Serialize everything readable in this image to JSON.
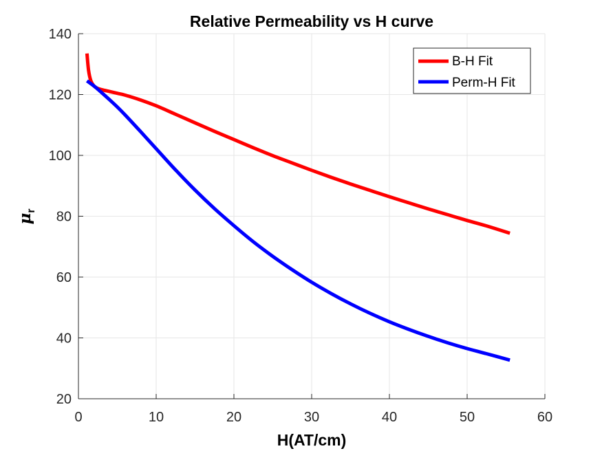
{
  "chart_data": {
    "type": "line",
    "title": "Relative Permeability vs H curve",
    "xlabel": "H(AT/cm)",
    "ylabel": {
      "symbol": "μ",
      "subscript": "r"
    },
    "xlim": [
      0,
      60
    ],
    "ylim": [
      20,
      140
    ],
    "xticks": [
      "0",
      "10",
      "20",
      "30",
      "40",
      "50",
      "60"
    ],
    "yticks": [
      "20",
      "40",
      "60",
      "80",
      "100",
      "120",
      "140"
    ],
    "grid": true,
    "legend_position": "top-right",
    "series": [
      {
        "name": "B-H Fit",
        "color": "#ff0000",
        "x": [
          1.1,
          1.3,
          1.6,
          2.0,
          2.5,
          3.0,
          4.0,
          5.0,
          6.0,
          8.0,
          10.0,
          12.5,
          15.0,
          17.5,
          20.0,
          22.5,
          25.0,
          27.5,
          30.0,
          32.5,
          35.0,
          37.5,
          40.0,
          42.5,
          45.0,
          47.5,
          50.0,
          52.5,
          55.5
        ],
        "y": [
          133.5,
          128.0,
          124.5,
          122.8,
          122.0,
          121.6,
          121.0,
          120.4,
          119.8,
          118.2,
          116.3,
          113.5,
          110.7,
          107.9,
          105.2,
          102.5,
          99.9,
          97.5,
          95.1,
          92.8,
          90.6,
          88.5,
          86.4,
          84.4,
          82.4,
          80.5,
          78.6,
          76.8,
          74.4
        ]
      },
      {
        "name": "Perm-H Fit",
        "color": "#0000ff",
        "x": [
          1.1,
          2.0,
          3.0,
          4.0,
          5.0,
          6.0,
          8.0,
          10.0,
          12.5,
          15.0,
          17.5,
          20.0,
          22.5,
          25.0,
          27.5,
          30.0,
          32.5,
          35.0,
          37.5,
          40.0,
          42.5,
          45.0,
          47.5,
          50.0,
          52.5,
          55.5
        ],
        "y": [
          124.5,
          122.8,
          120.6,
          118.3,
          115.9,
          113.3,
          107.8,
          102.2,
          95.2,
          88.6,
          82.5,
          76.9,
          71.6,
          66.8,
          62.4,
          58.3,
          54.6,
          51.2,
          48.1,
          45.3,
          42.8,
          40.5,
          38.4,
          36.5,
          34.8,
          32.7
        ]
      }
    ]
  }
}
